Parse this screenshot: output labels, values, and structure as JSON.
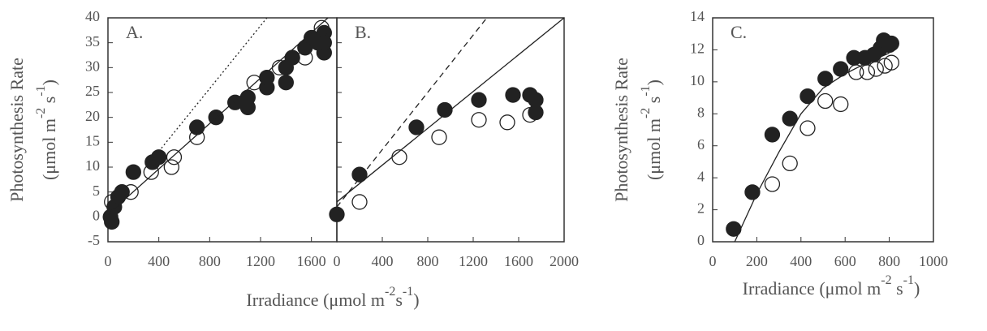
{
  "chart_data": [
    {
      "type": "scatter",
      "annotation": "A.",
      "ylabel": [
        "Photosynthesis Rate",
        "(μmol m",
        "-2",
        " s",
        "-1",
        ")"
      ],
      "xlabel": [
        "Irradiance (μmol m",
        "-2",
        "s",
        "-1",
        ")"
      ],
      "xlim": [
        0,
        1800
      ],
      "ylim": [
        -5,
        40
      ],
      "xticks": [
        0,
        400,
        800,
        1200,
        1600
      ],
      "yticks": [
        -5,
        0,
        5,
        10,
        15,
        20,
        25,
        30,
        35,
        40
      ],
      "show_yticklabels": true,
      "series": [
        {
          "marker": "filled",
          "color": "#222",
          "x": [
            20,
            30,
            50,
            80,
            110,
            200,
            350,
            400,
            700,
            850,
            1000,
            1100,
            1100,
            1250,
            1250,
            1400,
            1400,
            1450,
            1550,
            1600,
            1650,
            1700,
            1700,
            1700
          ],
          "values": [
            0,
            -1,
            2,
            4,
            5,
            9,
            11,
            12,
            18,
            20,
            23,
            22,
            24,
            26,
            28,
            27,
            30,
            32,
            34,
            36,
            35,
            37,
            33,
            35
          ]
        },
        {
          "marker": "open",
          "color": "#222",
          "x": [
            30,
            180,
            340,
            500,
            520,
            700,
            1150,
            1350,
            1550,
            1680
          ],
          "values": [
            3,
            5,
            9,
            10,
            12,
            16,
            27,
            30,
            32,
            38
          ]
        },
        {
          "marker": "none",
          "line": "solid",
          "color": "#222",
          "x": [
            0,
            1730
          ],
          "values": [
            0.5,
            40
          ]
        },
        {
          "marker": "none",
          "line": "dotted",
          "color": "#222",
          "x": [
            300,
            1250
          ],
          "values": [
            10,
            40
          ]
        }
      ]
    },
    {
      "type": "scatter",
      "annotation": "B.",
      "xlim": [
        0,
        2000
      ],
      "ylim": [
        -5,
        40
      ],
      "xticks": [
        0,
        400,
        800,
        1200,
        1600,
        2000
      ],
      "yticks": [
        -5,
        0,
        5,
        10,
        15,
        20,
        25,
        30,
        35,
        40
      ],
      "show_yticklabels": false,
      "series": [
        {
          "marker": "filled",
          "color": "#222",
          "x": [
            0,
            200,
            700,
            950,
            1250,
            1550,
            1700,
            1750,
            1750
          ],
          "values": [
            0.5,
            8.5,
            18,
            21.5,
            23.5,
            24.5,
            24.5,
            23.5,
            21
          ]
        },
        {
          "marker": "open",
          "color": "#222",
          "x": [
            200,
            550,
            900,
            1250,
            1500,
            1700
          ],
          "values": [
            3,
            12,
            16,
            19.5,
            19,
            20.5
          ]
        },
        {
          "marker": "none",
          "line": "solid",
          "color": "#222",
          "x": [
            0,
            2000
          ],
          "values": [
            3,
            40
          ]
        },
        {
          "marker": "none",
          "line": "dashed",
          "color": "#222",
          "x": [
            0,
            1320
          ],
          "values": [
            2,
            40
          ]
        }
      ]
    },
    {
      "type": "scatter",
      "annotation": "C.",
      "ylabel": [
        "Photosynthesis Rate",
        "(μmol m",
        "-2",
        " s",
        "-1",
        ")"
      ],
      "xlabel": [
        "Irradiance (μmol m",
        "-2",
        " s",
        "-1",
        ")"
      ],
      "xlim": [
        0,
        1000
      ],
      "ylim": [
        0,
        14
      ],
      "xticks": [
        0,
        200,
        400,
        600,
        800,
        1000
      ],
      "yticks": [
        0,
        2,
        4,
        6,
        8,
        10,
        12,
        14
      ],
      "show_yticklabels": true,
      "series": [
        {
          "marker": "filled",
          "color": "#222",
          "x": [
            95,
            180,
            270,
            350,
            430,
            510,
            580,
            640,
            690,
            730,
            760,
            775,
            800,
            810
          ],
          "values": [
            0.8,
            3.1,
            6.7,
            7.7,
            9.1,
            10.2,
            10.8,
            11.5,
            11.5,
            11.7,
            12.1,
            12.6,
            12.3,
            12.4
          ]
        },
        {
          "marker": "open",
          "color": "#222",
          "x": [
            270,
            350,
            430,
            510,
            580,
            650,
            700,
            740,
            780,
            810
          ],
          "values": [
            3.6,
            4.9,
            7.1,
            8.8,
            8.6,
            10.6,
            10.6,
            10.8,
            11.0,
            11.2
          ]
        },
        {
          "marker": "none",
          "line": "solid",
          "color": "#222",
          "x": [
            100,
            200,
            300,
            400,
            500,
            600,
            700,
            800
          ],
          "values": [
            0,
            3,
            5.6,
            8,
            9.6,
            10.5,
            11.2,
            11.8
          ]
        }
      ]
    }
  ]
}
